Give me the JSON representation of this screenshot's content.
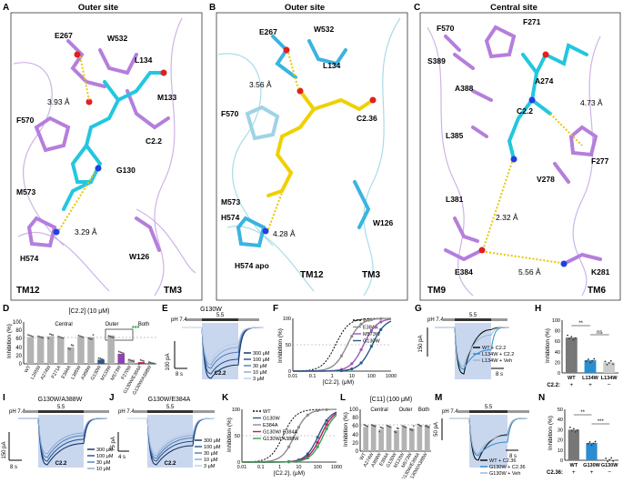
{
  "panels": {
    "A": {
      "letter": "A",
      "title": "Outer site",
      "residues": [
        "E267",
        "W532",
        "L134",
        "F570",
        "M133",
        "C2.2",
        "G130",
        "M573",
        "H574",
        "W126"
      ],
      "distances": [
        "3.93 Å",
        "3.29 Å"
      ],
      "tm": [
        "TM12",
        "TM3"
      ]
    },
    "B": {
      "letter": "B",
      "title": "Outer site",
      "residues": [
        "E267",
        "W532",
        "L134",
        "F570",
        "C2.36",
        "M573",
        "H574",
        "H574 apo",
        "W126"
      ],
      "distances": [
        "3.56 Å",
        "4.28 Å"
      ],
      "tm": [
        "TM12",
        "TM3"
      ]
    },
    "C": {
      "letter": "C",
      "title": "Central site",
      "residues": [
        "F271",
        "F570",
        "S389",
        "A274",
        "A388",
        "C2.2",
        "F277",
        "L385",
        "V278",
        "L381",
        "E384",
        "K281"
      ],
      "distances": [
        "4.73 Å",
        "2.32 Å",
        "5.56 Å"
      ],
      "tm": [
        "TM9",
        "TM6"
      ]
    },
    "D": {
      "letter": "D",
      "title": "[C2.2] (10 μM)",
      "ylabel": "Inhibition (%)",
      "groups": [
        "Central",
        "Outer",
        "Both"
      ],
      "categories": [
        "WT",
        "L265W",
        "A274W",
        "F271A",
        "E384A",
        "L385W",
        "A388W",
        "G130W",
        "M133W",
        "M573W",
        "F270W",
        "G130W/E384A",
        "G130W/A388W"
      ],
      "ticks": [
        "0",
        "20",
        "40",
        "60",
        "80",
        "100"
      ],
      "stars": "***"
    },
    "E": {
      "letter": "E",
      "title": "G130W",
      "ph": [
        "pH 7.4",
        "5.5"
      ],
      "drug": "C2.2",
      "scale_i": "100 pA",
      "scale_t": "8 s",
      "legend": [
        "300 μM",
        "100 μM",
        "30 μM",
        "10 μM",
        "3 μM"
      ]
    },
    "F": {
      "letter": "F",
      "ylabel": "Inhibition (%)",
      "xlabel": "[C2.2], (μM)",
      "legend": [
        "WT",
        "E384A",
        "M573W",
        "G130W"
      ],
      "xticks": [
        "0.01",
        "0.1",
        "1",
        "10",
        "100",
        "1000"
      ],
      "yticks": [
        "0",
        "50",
        "100"
      ]
    },
    "G": {
      "letter": "G",
      "ph": [
        "pH 7.4",
        "5.5"
      ],
      "scale_i": "150 pA",
      "scale_t": "8 s",
      "legend": [
        "WT + C2.2",
        "L134W + C2.2",
        "L134W + Veh"
      ]
    },
    "H": {
      "letter": "H",
      "ylabel": "Inhibition (%)",
      "categories": [
        "WT",
        "L134W",
        "L134W"
      ],
      "treat_label": "C2.2:",
      "treat": [
        "+",
        "+",
        "−"
      ],
      "sig": [
        "**",
        "ns"
      ],
      "yticks": [
        "0",
        "20",
        "40",
        "60",
        "80",
        "100"
      ]
    },
    "I": {
      "letter": "I",
      "title": "G130W/A388W",
      "ph": [
        "pH 7.4",
        "5.5"
      ],
      "drug": "C2.2",
      "scale_i": "150 pA",
      "scale_t": "8 s",
      "legend": [
        "300 μM",
        "100 μM",
        "30 μM",
        "10 μM"
      ]
    },
    "J": {
      "letter": "J",
      "title": "G130W/E384A",
      "ph": [
        "pH 7.4",
        "5.5"
      ],
      "drug": "C2.2",
      "scale_i": "75 pA",
      "scale_t": "4 s",
      "legend": [
        "300 μM",
        "100 μM",
        "30 μM",
        "10 μM",
        "3 μM"
      ]
    },
    "K": {
      "letter": "K",
      "ylabel": "Inhibition (%)",
      "xlabel": "[C2.2], (μM)",
      "legend": [
        "WT",
        "G130W",
        "E384A",
        "G130W/ E384A",
        "G130W/ A388W"
      ],
      "xticks": [
        "0.01",
        "0.1",
        "1",
        "10",
        "100",
        "1000"
      ],
      "yticks": [
        "0",
        "50",
        "100"
      ]
    },
    "L": {
      "letter": "L",
      "title": "[C11] (100 μM)",
      "ylabel": "Inhibition (%)",
      "groups": [
        "Central",
        "Outer",
        "Both"
      ],
      "categories": [
        "WT",
        "A274W",
        "A388W",
        "E384A",
        "G130W",
        "M133W",
        "M573W",
        "G130W/E384A",
        "G130W/A388W"
      ],
      "ticks": [
        "0",
        "20",
        "40",
        "60",
        "80",
        "100"
      ]
    },
    "M": {
      "letter": "M",
      "ph": [
        "pH 7.4",
        "5.5"
      ],
      "scale_i": "50 pA",
      "scale_t": "8 s",
      "legend": [
        "WT + C2.36",
        "G130W + C2.36",
        "G130W + Veh"
      ]
    },
    "N": {
      "letter": "N",
      "ylabel": "Inhibition (%)",
      "categories": [
        "WT",
        "G130W",
        "G130W"
      ],
      "treat_label": "C2.36:",
      "treat": [
        "+",
        "+",
        "−"
      ],
      "sig": [
        "**",
        "***"
      ],
      "yticks": [
        "0",
        "10",
        "20",
        "30",
        "40",
        "50"
      ]
    }
  },
  "chart_data": [
    {
      "type": "bar",
      "panel": "D",
      "title": "[C2.2] (10 μM)",
      "ylabel": "Inhibition (%)",
      "ylim": [
        0,
        100
      ],
      "categories": [
        "WT",
        "L265W",
        "A274W",
        "F271A",
        "E384A",
        "L385W",
        "A388W",
        "G130W",
        "M133W",
        "M573W",
        "F270W",
        "G130W/E384A",
        "G130W/A388W"
      ],
      "values": [
        64,
        66,
        66,
        64,
        40,
        65,
        64,
        10,
        68,
        24,
        10,
        4,
        3
      ],
      "colors": [
        "#b3b3b3",
        "#b3b3b3",
        "#b3b3b3",
        "#b3b3b3",
        "#b3b3b3",
        "#b3b3b3",
        "#b3b3b3",
        "#2a5a8a",
        "#b3b3b3",
        "#8e44ad",
        "#b3b3b3",
        "#c0185a",
        "#3aa05a"
      ]
    },
    {
      "type": "line",
      "panel": "F",
      "xscale": "log",
      "xlim": [
        0.01,
        1000
      ],
      "ylim": [
        0,
        100
      ],
      "series": [
        {
          "name": "WT",
          "ic50": 1.5,
          "color": "#000000",
          "dashed": true
        },
        {
          "name": "E384A",
          "ic50": 6,
          "color": "#8c8c8c"
        },
        {
          "name": "M573W",
          "ic50": 40,
          "color": "#9b59b6"
        },
        {
          "name": "G130W",
          "ic50": 110,
          "color": "#2a5a8a"
        }
      ]
    },
    {
      "type": "bar",
      "panel": "H",
      "ylim": [
        0,
        100
      ],
      "categories": [
        "WT",
        "L134W",
        "L134W"
      ],
      "values": [
        67,
        24,
        20
      ],
      "colors": [
        "#777777",
        "#2b8cd0",
        "#cccccc"
      ]
    },
    {
      "type": "line",
      "panel": "K",
      "xscale": "log",
      "xlim": [
        0.01,
        1000
      ],
      "ylim": [
        0,
        100
      ],
      "series": [
        {
          "name": "WT",
          "ic50": 1.5,
          "color": "#000000",
          "dashed": true
        },
        {
          "name": "G130W",
          "ic50": 110,
          "color": "#2a5a8a"
        },
        {
          "name": "E384A",
          "ic50": 6,
          "color": "#8c8c8c"
        },
        {
          "name": "G130W/ E384A",
          "ic50": 150,
          "color": "#c0185a"
        },
        {
          "name": "G130W/ A388W",
          "ic50": 200,
          "color": "#3aa05a"
        }
      ]
    },
    {
      "type": "bar",
      "panel": "L",
      "title": "[C11] (100 μM)",
      "ylabel": "Inhibition (%)",
      "ylim": [
        0,
        100
      ],
      "categories": [
        "WT",
        "A274W",
        "A388W",
        "E384A",
        "G130W",
        "M133W",
        "M573W",
        "G130W/E384A",
        "G130W/A388W"
      ],
      "values": [
        58,
        63,
        52,
        60,
        50,
        58,
        55,
        60,
        62
      ],
      "colors": [
        "#b3b3b3",
        "#b3b3b3",
        "#b3b3b3",
        "#b3b3b3",
        "#b3b3b3",
        "#b3b3b3",
        "#b3b3b3",
        "#b3b3b3",
        "#b3b3b3"
      ]
    },
    {
      "type": "bar",
      "panel": "N",
      "ylim": [
        0,
        50
      ],
      "categories": [
        "WT",
        "G130W",
        "G130W"
      ],
      "values": [
        30,
        17,
        1
      ],
      "colors": [
        "#777777",
        "#2b8cd0",
        "#cccccc"
      ]
    }
  ]
}
